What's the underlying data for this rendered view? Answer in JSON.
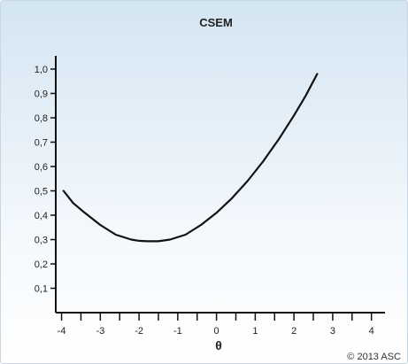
{
  "chart_data": {
    "type": "line",
    "title": "CSEM",
    "xlabel": "θ",
    "ylabel": "",
    "xlim": [
      -4.15,
      4.35
    ],
    "ylim": [
      0,
      1.08
    ],
    "x_ticks": [
      -4,
      -3,
      -2,
      -1,
      0,
      1,
      2,
      3,
      4
    ],
    "x_tick_labels": [
      "-4",
      "-3",
      "-2",
      "-1",
      "0",
      "1",
      "2",
      "3",
      "4"
    ],
    "y_ticks": [
      0.1,
      0.2,
      0.3,
      0.4,
      0.5,
      0.6,
      0.7,
      0.8,
      0.9,
      1.0
    ],
    "y_tick_labels": [
      "0,1",
      "0,2",
      "0,3",
      "0,4",
      "0,5",
      "0,6",
      "0,7",
      "0,8",
      "0,9",
      "1,0"
    ],
    "grid": false,
    "series": [
      {
        "x": [
          -3.95,
          -3.7,
          -3.4,
          -3.0,
          -2.6,
          -2.2,
          -2.0,
          -1.8,
          -1.5,
          -1.2,
          -0.8,
          -0.4,
          0.0,
          0.4,
          0.8,
          1.2,
          1.6,
          2.0,
          2.3,
          2.6
        ],
        "y": [
          0.5,
          0.45,
          0.41,
          0.36,
          0.32,
          0.3,
          0.295,
          0.293,
          0.293,
          0.3,
          0.32,
          0.36,
          0.41,
          0.47,
          0.54,
          0.62,
          0.71,
          0.81,
          0.89,
          0.98
        ]
      }
    ],
    "copyright": "© 2013 ASC"
  }
}
